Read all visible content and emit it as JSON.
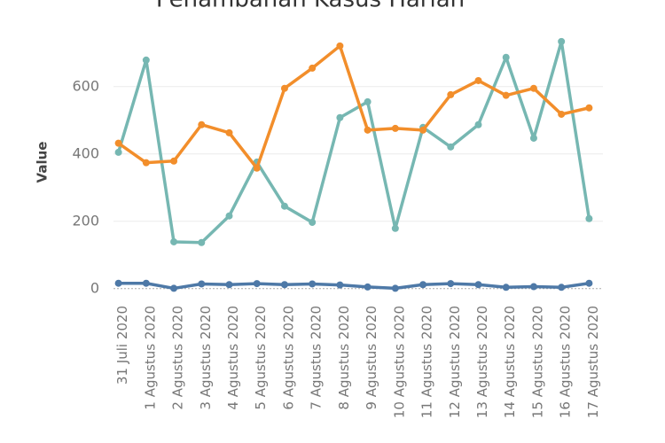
{
  "chart_data": {
    "type": "line",
    "title": "Penambahan Kasus Harian",
    "y_label": "Value",
    "categories": [
      "31 Juli 2020",
      "1 Agustus 2020",
      "2 Agustus 2020",
      "3 Agustus 2020",
      "4 Agustus 2020",
      "5 Agustus 2020",
      "6 Agustus 2020",
      "7 Agustus 2020",
      "8 Agustus 2020",
      "9 Agustus 2020",
      "10 Agustus 2020",
      "11 Agustus 2020",
      "12 Agustus 2020",
      "13 Agustus 2020",
      "14 Agustus 2020",
      "15 Agustus 2020",
      "16 Agustus 2020",
      "17 Agustus 2020"
    ],
    "series": [
      {
        "color": "#76b7b2",
        "values": [
          405,
          679,
          139,
          137,
          216,
          376,
          245,
          197,
          508,
          555,
          179,
          479,
          421,
          487,
          687,
          447,
          734,
          208
        ]
      },
      {
        "color": "#f28e2b",
        "values": [
          432,
          374,
          379,
          487,
          463,
          358,
          595,
          655,
          721,
          471,
          476,
          471,
          576,
          618,
          574,
          595,
          518,
          537
        ]
      },
      {
        "color": "#4e79a7",
        "values": [
          16,
          16,
          1,
          14,
          12,
          15,
          12,
          14,
          11,
          5,
          1,
          12,
          15,
          12,
          4,
          6,
          4,
          16
        ]
      }
    ],
    "ylim": [
      -40,
      760
    ],
    "yticks": [
      0,
      200,
      400,
      600
    ],
    "grid": true
  }
}
